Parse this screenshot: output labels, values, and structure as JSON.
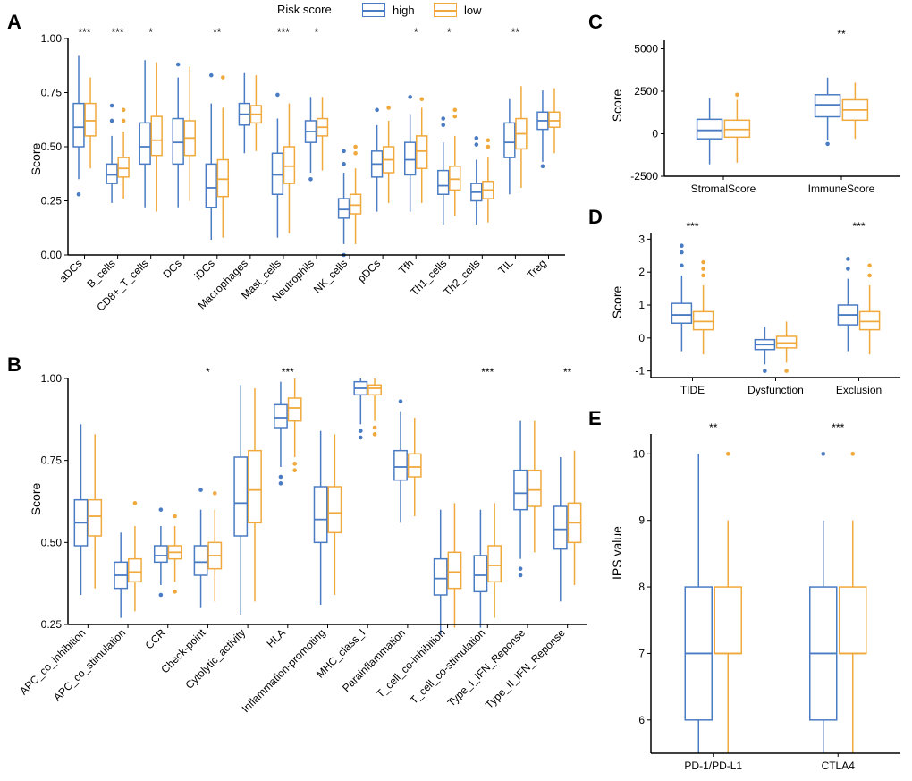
{
  "colors": {
    "high": "#4a7cc4",
    "low": "#f0a93c",
    "axis": "#000000",
    "bg": "#ffffff"
  },
  "legend": {
    "title": "Risk score",
    "items": [
      {
        "label": "high",
        "color": "#4a7cc4"
      },
      {
        "label": "low",
        "color": "#f0a93c"
      }
    ]
  },
  "panelA": {
    "label": "A",
    "yTitle": "Score",
    "ylim": [
      0.0,
      1.0
    ],
    "yticks": [
      0.0,
      0.25,
      0.5,
      0.75,
      1.0
    ],
    "categories": [
      {
        "name": "aDCs",
        "sig": "***",
        "high": {
          "q1": 0.5,
          "med": 0.59,
          "q3": 0.7,
          "lo": 0.35,
          "hi": 0.92,
          "out": [
            0.28
          ]
        },
        "low": {
          "q1": 0.55,
          "med": 0.62,
          "q3": 0.7,
          "lo": 0.4,
          "hi": 0.82,
          "out": []
        }
      },
      {
        "name": "B_cells",
        "sig": "***",
        "high": {
          "q1": 0.33,
          "med": 0.37,
          "q3": 0.42,
          "lo": 0.24,
          "hi": 0.55,
          "out": [
            0.62,
            0.69
          ]
        },
        "low": {
          "q1": 0.36,
          "med": 0.4,
          "q3": 0.45,
          "lo": 0.26,
          "hi": 0.57,
          "out": [
            0.62,
            0.67
          ]
        }
      },
      {
        "name": "CD8+_T_cells",
        "sig": "*",
        "high": {
          "q1": 0.42,
          "med": 0.5,
          "q3": 0.61,
          "lo": 0.22,
          "hi": 0.9,
          "out": []
        },
        "low": {
          "q1": 0.46,
          "med": 0.53,
          "q3": 0.64,
          "lo": 0.2,
          "hi": 0.89,
          "out": []
        }
      },
      {
        "name": "DCs",
        "sig": "",
        "high": {
          "q1": 0.42,
          "med": 0.52,
          "q3": 0.63,
          "lo": 0.22,
          "hi": 0.82,
          "out": [
            0.88
          ]
        },
        "low": {
          "q1": 0.46,
          "med": 0.54,
          "q3": 0.62,
          "lo": 0.25,
          "hi": 0.87,
          "out": []
        }
      },
      {
        "name": "iDCs",
        "sig": "**",
        "high": {
          "q1": 0.22,
          "med": 0.31,
          "q3": 0.42,
          "lo": 0.07,
          "hi": 0.7,
          "out": [
            0.83
          ]
        },
        "low": {
          "q1": 0.27,
          "med": 0.35,
          "q3": 0.44,
          "lo": 0.08,
          "hi": 0.68,
          "out": [
            0.82
          ]
        }
      },
      {
        "name": "Macrophages",
        "sig": "",
        "high": {
          "q1": 0.6,
          "med": 0.65,
          "q3": 0.7,
          "lo": 0.47,
          "hi": 0.84,
          "out": []
        },
        "low": {
          "q1": 0.61,
          "med": 0.65,
          "q3": 0.69,
          "lo": 0.48,
          "hi": 0.83,
          "out": []
        }
      },
      {
        "name": "Mast_cells",
        "sig": "***",
        "high": {
          "q1": 0.28,
          "med": 0.37,
          "q3": 0.47,
          "lo": 0.08,
          "hi": 0.63,
          "out": [
            0.74
          ]
        },
        "low": {
          "q1": 0.33,
          "med": 0.41,
          "q3": 0.5,
          "lo": 0.1,
          "hi": 0.7,
          "out": []
        }
      },
      {
        "name": "Neutrophils",
        "sig": "*",
        "high": {
          "q1": 0.52,
          "med": 0.57,
          "q3": 0.62,
          "lo": 0.38,
          "hi": 0.73,
          "out": [
            0.35
          ]
        },
        "low": {
          "q1": 0.55,
          "med": 0.59,
          "q3": 0.63,
          "lo": 0.39,
          "hi": 0.73,
          "out": []
        }
      },
      {
        "name": "NK_cells",
        "sig": "",
        "high": {
          "q1": 0.17,
          "med": 0.21,
          "q3": 0.26,
          "lo": 0.05,
          "hi": 0.38,
          "out": [
            0.0,
            0.42,
            0.48
          ]
        },
        "low": {
          "q1": 0.19,
          "med": 0.23,
          "q3": 0.28,
          "lo": 0.05,
          "hi": 0.4,
          "out": [
            0.47,
            0.5
          ]
        }
      },
      {
        "name": "pDCs",
        "sig": "",
        "high": {
          "q1": 0.36,
          "med": 0.42,
          "q3": 0.48,
          "lo": 0.2,
          "hi": 0.6,
          "out": [
            0.67
          ]
        },
        "low": {
          "q1": 0.38,
          "med": 0.44,
          "q3": 0.5,
          "lo": 0.24,
          "hi": 0.62,
          "out": [
            0.68
          ]
        }
      },
      {
        "name": "Tfh",
        "sig": "*",
        "high": {
          "q1": 0.37,
          "med": 0.44,
          "q3": 0.52,
          "lo": 0.2,
          "hi": 0.65,
          "out": [
            0.73
          ]
        },
        "low": {
          "q1": 0.4,
          "med": 0.48,
          "q3": 0.55,
          "lo": 0.24,
          "hi": 0.68,
          "out": [
            0.72
          ]
        }
      },
      {
        "name": "Th1_cells",
        "sig": "*",
        "high": {
          "q1": 0.28,
          "med": 0.32,
          "q3": 0.39,
          "lo": 0.14,
          "hi": 0.52,
          "out": [
            0.6,
            0.63
          ]
        },
        "low": {
          "q1": 0.3,
          "med": 0.35,
          "q3": 0.41,
          "lo": 0.18,
          "hi": 0.55,
          "out": [
            0.64,
            0.67
          ]
        }
      },
      {
        "name": "Th2_cells",
        "sig": "",
        "high": {
          "q1": 0.25,
          "med": 0.29,
          "q3": 0.33,
          "lo": 0.14,
          "hi": 0.44,
          "out": [
            0.51,
            0.54
          ]
        },
        "low": {
          "q1": 0.26,
          "med": 0.3,
          "q3": 0.34,
          "lo": 0.15,
          "hi": 0.45,
          "out": [
            0.5,
            0.53
          ]
        }
      },
      {
        "name": "TIL",
        "sig": "**",
        "high": {
          "q1": 0.45,
          "med": 0.52,
          "q3": 0.61,
          "lo": 0.28,
          "hi": 0.72,
          "out": []
        },
        "low": {
          "q1": 0.49,
          "med": 0.56,
          "q3": 0.63,
          "lo": 0.31,
          "hi": 0.78,
          "out": []
        }
      },
      {
        "name": "Treg",
        "sig": "",
        "high": {
          "q1": 0.58,
          "med": 0.62,
          "q3": 0.66,
          "lo": 0.43,
          "hi": 0.76,
          "out": [
            0.41
          ]
        },
        "low": {
          "q1": 0.59,
          "med": 0.62,
          "q3": 0.66,
          "lo": 0.47,
          "hi": 0.77,
          "out": []
        }
      }
    ]
  },
  "panelB": {
    "label": "B",
    "yTitle": "Score",
    "ylim": [
      0.25,
      1.0
    ],
    "yticks": [
      0.25,
      0.5,
      0.75,
      1.0
    ],
    "categories": [
      {
        "name": "APC_co_inhibition",
        "sig": "",
        "high": {
          "q1": 0.49,
          "med": 0.56,
          "q3": 0.63,
          "lo": 0.34,
          "hi": 0.86,
          "out": []
        },
        "low": {
          "q1": 0.52,
          "med": 0.58,
          "q3": 0.63,
          "lo": 0.36,
          "hi": 0.83,
          "out": []
        }
      },
      {
        "name": "APC_co_stimulation",
        "sig": "",
        "high": {
          "q1": 0.36,
          "med": 0.4,
          "q3": 0.44,
          "lo": 0.27,
          "hi": 0.53,
          "out": []
        },
        "low": {
          "q1": 0.38,
          "med": 0.41,
          "q3": 0.45,
          "lo": 0.29,
          "hi": 0.55,
          "out": [
            0.62
          ]
        }
      },
      {
        "name": "CCR",
        "sig": "",
        "high": {
          "q1": 0.44,
          "med": 0.46,
          "q3": 0.49,
          "lo": 0.37,
          "hi": 0.55,
          "out": [
            0.34,
            0.6
          ]
        },
        "low": {
          "q1": 0.45,
          "med": 0.47,
          "q3": 0.49,
          "lo": 0.38,
          "hi": 0.55,
          "out": [
            0.35,
            0.58
          ]
        }
      },
      {
        "name": "Check-point",
        "sig": "*",
        "high": {
          "q1": 0.4,
          "med": 0.44,
          "q3": 0.49,
          "lo": 0.3,
          "hi": 0.6,
          "out": [
            0.66
          ]
        },
        "low": {
          "q1": 0.42,
          "med": 0.46,
          "q3": 0.5,
          "lo": 0.32,
          "hi": 0.6,
          "out": [
            0.65
          ]
        }
      },
      {
        "name": "Cytolytic_activity",
        "sig": "",
        "high": {
          "q1": 0.52,
          "med": 0.62,
          "q3": 0.76,
          "lo": 0.28,
          "hi": 0.98,
          "out": []
        },
        "low": {
          "q1": 0.56,
          "med": 0.66,
          "q3": 0.78,
          "lo": 0.32,
          "hi": 0.97,
          "out": []
        }
      },
      {
        "name": "HLA",
        "sig": "***",
        "high": {
          "q1": 0.85,
          "med": 0.88,
          "q3": 0.92,
          "lo": 0.73,
          "hi": 0.99,
          "out": [
            0.68,
            0.7
          ]
        },
        "low": {
          "q1": 0.87,
          "med": 0.91,
          "q3": 0.94,
          "lo": 0.76,
          "hi": 1.0,
          "out": [
            0.72,
            0.74
          ]
        }
      },
      {
        "name": "Inflammation-promoting",
        "sig": "",
        "high": {
          "q1": 0.5,
          "med": 0.57,
          "q3": 0.67,
          "lo": 0.31,
          "hi": 0.84,
          "out": []
        },
        "low": {
          "q1": 0.53,
          "med": 0.59,
          "q3": 0.67,
          "lo": 0.34,
          "hi": 0.83,
          "out": []
        }
      },
      {
        "name": "MHC_class_I",
        "sig": "",
        "high": {
          "q1": 0.95,
          "med": 0.97,
          "q3": 0.99,
          "lo": 0.86,
          "hi": 1.0,
          "out": [
            0.82,
            0.84
          ]
        },
        "low": {
          "q1": 0.95,
          "med": 0.97,
          "q3": 0.98,
          "lo": 0.87,
          "hi": 1.0,
          "out": [
            0.83,
            0.85
          ]
        }
      },
      {
        "name": "Parainflammation",
        "sig": "",
        "high": {
          "q1": 0.69,
          "med": 0.73,
          "q3": 0.78,
          "lo": 0.56,
          "hi": 0.9,
          "out": [
            0.93
          ]
        },
        "low": {
          "q1": 0.7,
          "med": 0.73,
          "q3": 0.77,
          "lo": 0.58,
          "hi": 0.88,
          "out": []
        }
      },
      {
        "name": "T_cell_co-inhibition",
        "sig": "",
        "high": {
          "q1": 0.34,
          "med": 0.39,
          "q3": 0.45,
          "lo": 0.22,
          "hi": 0.6,
          "out": []
        },
        "low": {
          "q1": 0.36,
          "med": 0.41,
          "q3": 0.47,
          "lo": 0.24,
          "hi": 0.62,
          "out": []
        }
      },
      {
        "name": "T_cell_co-stimulation",
        "sig": "***",
        "high": {
          "q1": 0.35,
          "med": 0.4,
          "q3": 0.46,
          "lo": 0.24,
          "hi": 0.6,
          "out": []
        },
        "low": {
          "q1": 0.38,
          "med": 0.43,
          "q3": 0.49,
          "lo": 0.27,
          "hi": 0.62,
          "out": []
        }
      },
      {
        "name": "Type_I_IFN_Reponse",
        "sig": "",
        "high": {
          "q1": 0.6,
          "med": 0.65,
          "q3": 0.72,
          "lo": 0.45,
          "hi": 0.87,
          "out": [
            0.4,
            0.42
          ]
        },
        "low": {
          "q1": 0.61,
          "med": 0.66,
          "q3": 0.72,
          "lo": 0.47,
          "hi": 0.87,
          "out": []
        }
      },
      {
        "name": "Type_II_IFN_Reponse",
        "sig": "**",
        "high": {
          "q1": 0.48,
          "med": 0.54,
          "q3": 0.61,
          "lo": 0.32,
          "hi": 0.76,
          "out": []
        },
        "low": {
          "q1": 0.5,
          "med": 0.56,
          "q3": 0.62,
          "lo": 0.37,
          "hi": 0.78,
          "out": []
        }
      }
    ]
  },
  "panelC": {
    "label": "C",
    "yTitle": "Score",
    "ylim": [
      -2500,
      5500
    ],
    "yticks": [
      -2500,
      0,
      2500,
      5000
    ],
    "categories": [
      {
        "name": "StromalScore",
        "sig": "",
        "high": {
          "q1": -300,
          "med": 200,
          "q3": 850,
          "lo": -1800,
          "hi": 2100,
          "out": []
        },
        "low": {
          "q1": -200,
          "med": 250,
          "q3": 800,
          "lo": -1700,
          "hi": 2000,
          "out": [
            2300
          ]
        }
      },
      {
        "name": "ImmuneScore",
        "sig": "**",
        "high": {
          "q1": 1000,
          "med": 1700,
          "q3": 2300,
          "lo": -400,
          "hi": 3300,
          "out": [
            -600
          ]
        },
        "low": {
          "q1": 800,
          "med": 1400,
          "q3": 2000,
          "lo": -300,
          "hi": 3000,
          "out": []
        }
      }
    ]
  },
  "panelD": {
    "label": "D",
    "yTitle": "Score",
    "ylim": [
      -1.2,
      3.2
    ],
    "yticks": [
      -1,
      0,
      1,
      2,
      3
    ],
    "categories": [
      {
        "name": "TIDE",
        "sig": "***",
        "high": {
          "q1": 0.45,
          "med": 0.7,
          "q3": 1.05,
          "lo": -0.4,
          "hi": 1.9,
          "out": [
            2.2,
            2.6,
            2.8
          ]
        },
        "low": {
          "q1": 0.25,
          "med": 0.5,
          "q3": 0.8,
          "lo": -0.5,
          "hi": 1.6,
          "out": [
            1.9,
            2.1,
            2.3
          ]
        }
      },
      {
        "name": "Dysfunction",
        "sig": "",
        "high": {
          "q1": -0.35,
          "med": -0.2,
          "q3": -0.05,
          "lo": -0.8,
          "hi": 0.35,
          "out": [
            -1.0
          ]
        },
        "low": {
          "q1": -0.3,
          "med": -0.15,
          "q3": 0.05,
          "lo": -0.75,
          "hi": 0.5,
          "out": [
            -1.0
          ]
        }
      },
      {
        "name": "Exclusion",
        "sig": "***",
        "high": {
          "q1": 0.4,
          "med": 0.7,
          "q3": 1.0,
          "lo": -0.4,
          "hi": 1.8,
          "out": [
            2.1,
            2.4
          ]
        },
        "low": {
          "q1": 0.25,
          "med": 0.5,
          "q3": 0.8,
          "lo": -0.5,
          "hi": 1.6,
          "out": [
            1.9,
            2.2
          ]
        }
      }
    ]
  },
  "panelE": {
    "label": "E",
    "yTitle": "IPS value",
    "ylim": [
      5.5,
      10.3
    ],
    "yticks": [
      6,
      7,
      8,
      9,
      10
    ],
    "categories": [
      {
        "name": "PD-1/PD-L1",
        "sig": "**",
        "high": {
          "q1": 6.0,
          "med": 7.0,
          "q3": 8.0,
          "lo": 5.5,
          "hi": 10.0,
          "out": []
        },
        "low": {
          "q1": 7.0,
          "med": 7.0,
          "q3": 8.0,
          "lo": 5.5,
          "hi": 9.0,
          "out": [
            10
          ]
        }
      },
      {
        "name": "CTLA4",
        "sig": "***",
        "high": {
          "q1": 6.0,
          "med": 7.0,
          "q3": 8.0,
          "lo": 5.5,
          "hi": 9.0,
          "out": [
            10
          ]
        },
        "low": {
          "q1": 7.0,
          "med": 7.0,
          "q3": 8.0,
          "lo": 5.5,
          "hi": 9.0,
          "out": [
            10
          ]
        }
      }
    ]
  }
}
